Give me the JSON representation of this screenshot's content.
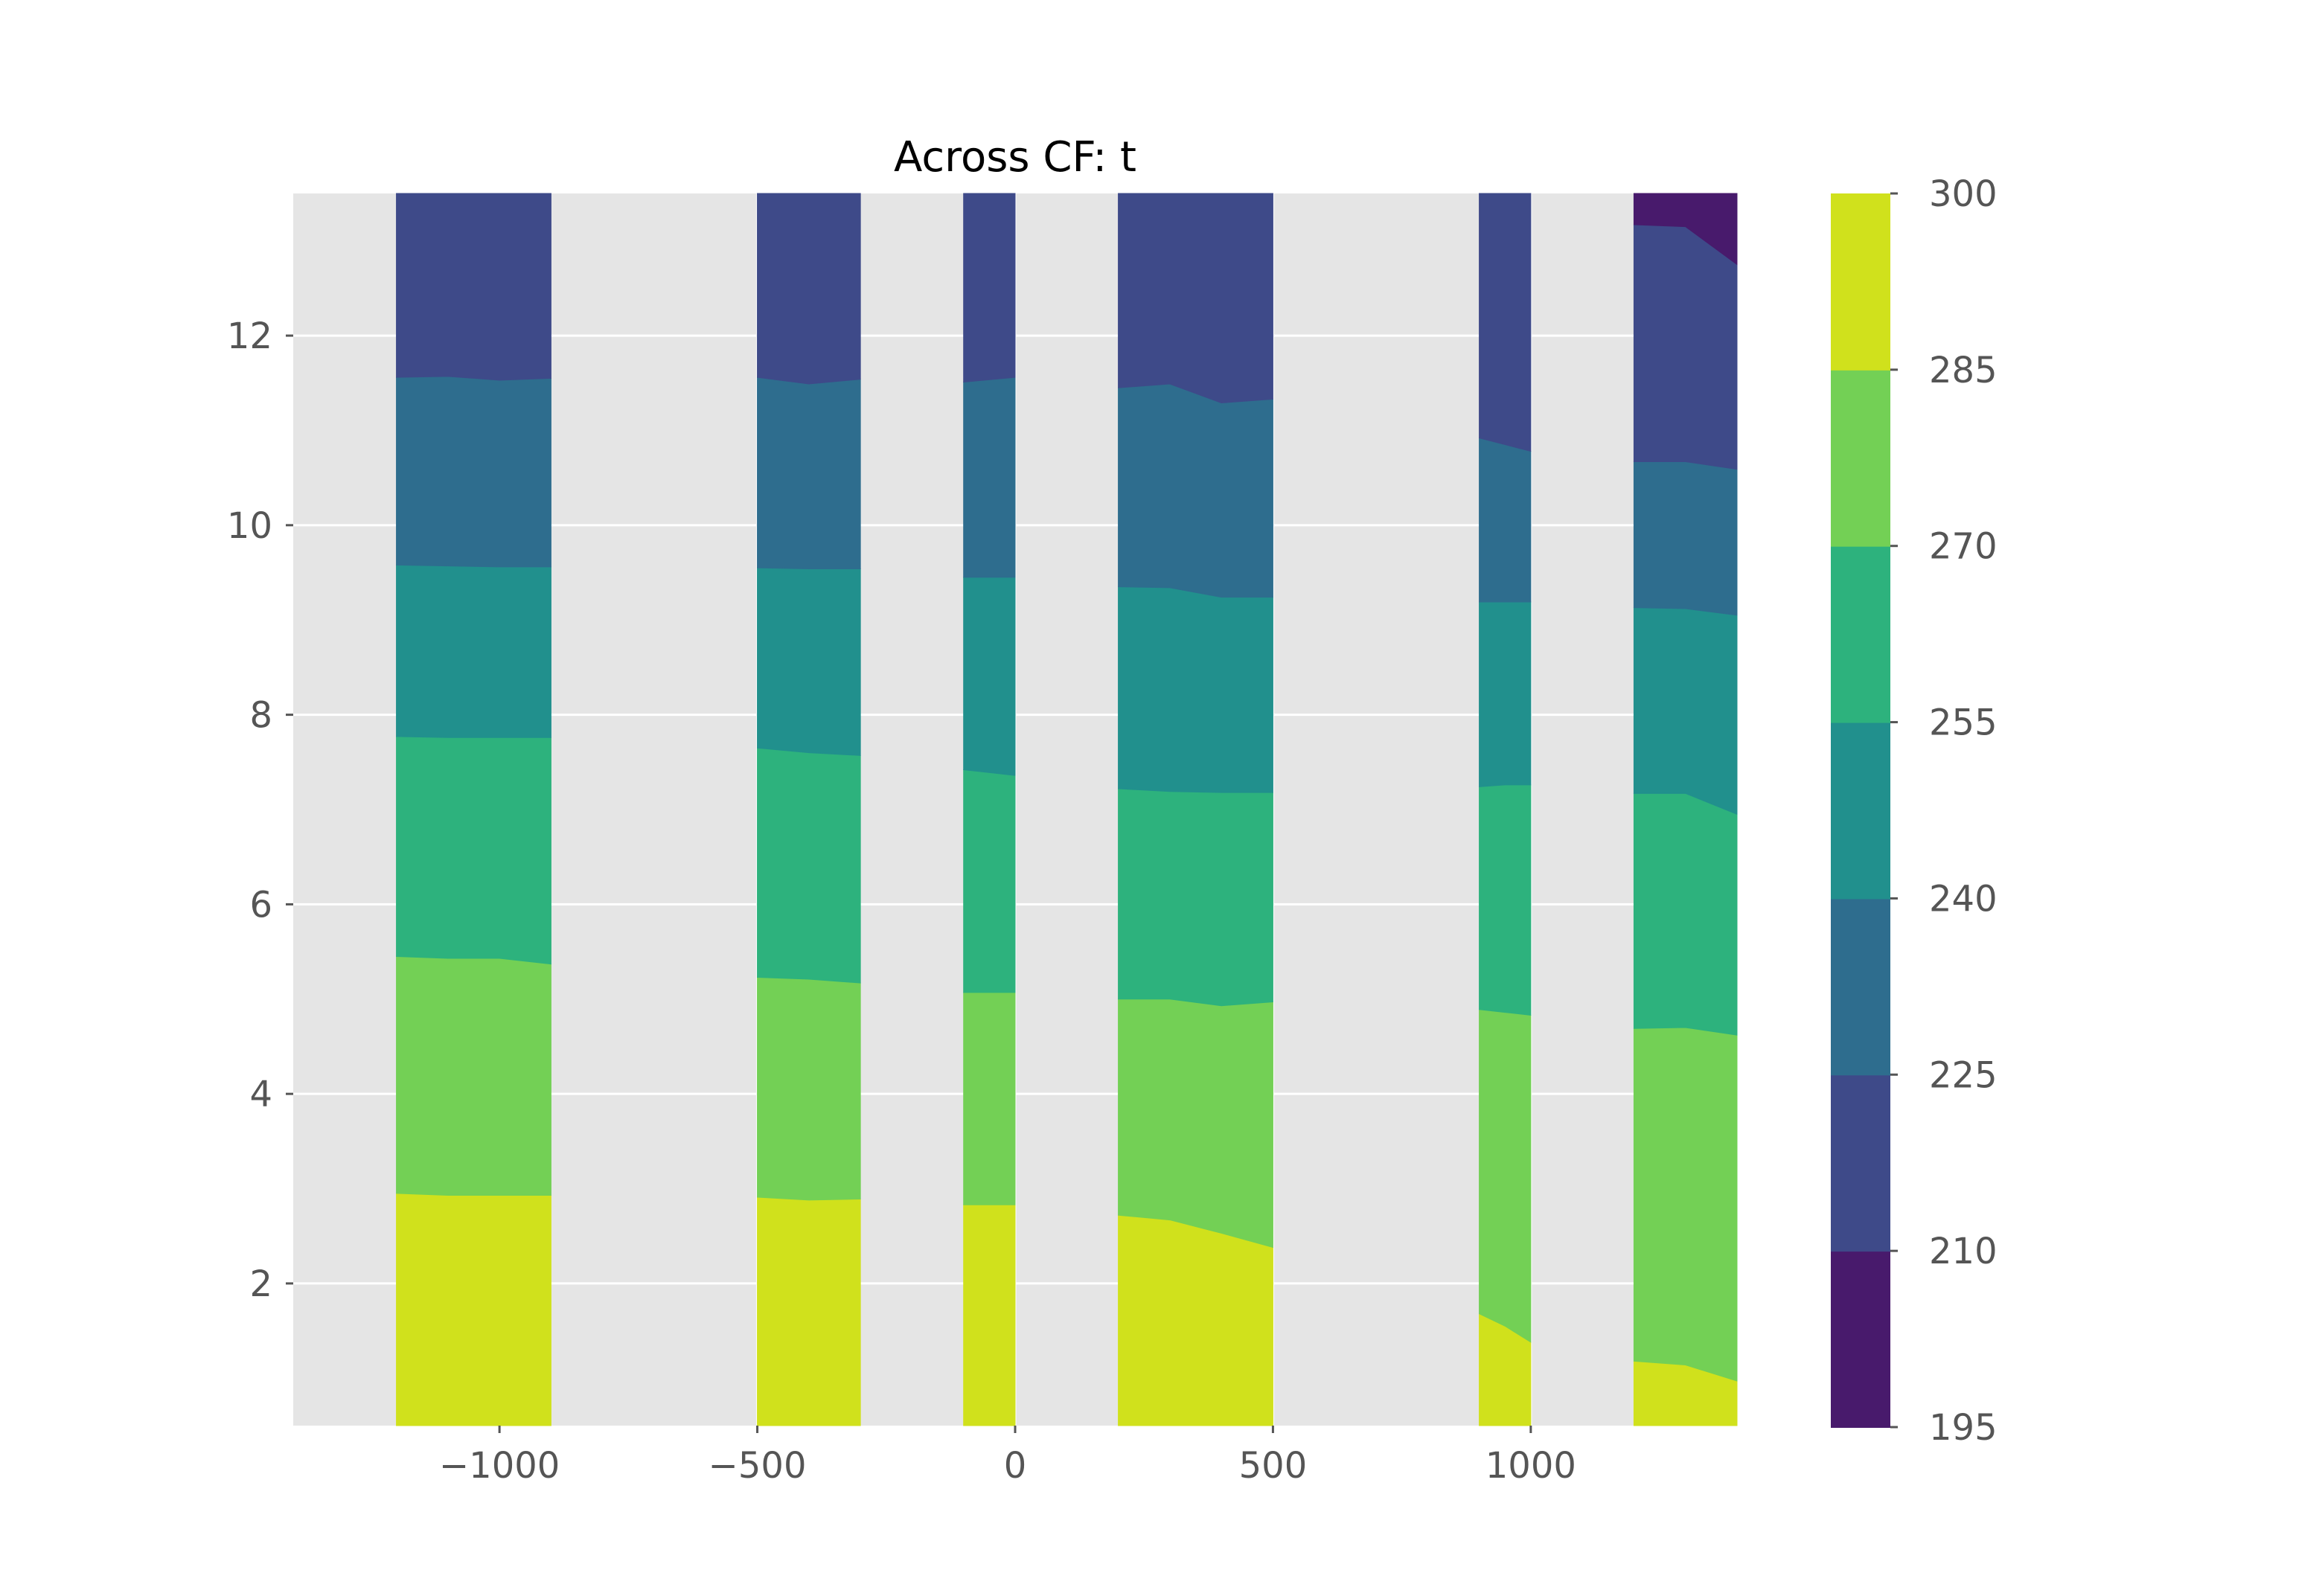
{
  "chart_data": {
    "type": "filled-contour",
    "title": "Across CF: t",
    "xlabel": "",
    "ylabel": "",
    "xlim": [
      -1400,
      1400
    ],
    "ylim": [
      0.5,
      13.5
    ],
    "grid": true,
    "background": "#e5e5e5",
    "x_ticks": [
      -1000,
      -500,
      0,
      500,
      1000
    ],
    "x_tick_labels": [
      "−1000",
      "−500",
      "0",
      "500",
      "1000"
    ],
    "y_ticks": [
      2,
      4,
      6,
      8,
      10,
      12
    ],
    "y_tick_labels": [
      "2",
      "4",
      "6",
      "8",
      "10",
      "12"
    ],
    "colorbar": {
      "levels": [
        195,
        210,
        225,
        240,
        255,
        270,
        285,
        300
      ],
      "tick_labels": [
        "195",
        "210",
        "225",
        "240",
        "255",
        "270",
        "285",
        "300"
      ],
      "colors": [
        "#481a6c",
        "#3e4a89",
        "#2e6d8e",
        "#21908d",
        "#2db27d",
        "#73d055",
        "#d0e11c"
      ]
    },
    "bands": [
      {
        "x": [
          -1200,
          -1100,
          -1000,
          -900
        ],
        "boundaries": [
          [
            2.95,
            2.93,
            2.93,
            2.93
          ],
          [
            5.45,
            5.43,
            5.43,
            5.37
          ],
          [
            7.77,
            7.76,
            7.76,
            7.76
          ],
          [
            9.58,
            9.57,
            9.56,
            9.56
          ],
          [
            11.56,
            11.57,
            11.53,
            11.55
          ]
        ]
      },
      {
        "x": [
          -500,
          -400,
          -300
        ],
        "boundaries": [
          [
            2.91,
            2.88,
            2.89
          ],
          [
            5.23,
            5.21,
            5.17
          ],
          [
            7.65,
            7.6,
            7.57
          ],
          [
            9.55,
            9.54,
            9.54
          ],
          [
            11.56,
            11.49,
            11.54
          ]
        ]
      },
      {
        "x": [
          -100,
          0
        ],
        "boundaries": [
          [
            2.83,
            2.83
          ],
          [
            5.07,
            5.07
          ],
          [
            7.42,
            7.36
          ],
          [
            9.45,
            9.45
          ],
          [
            11.51,
            11.56
          ]
        ]
      },
      {
        "x": [
          200,
          300,
          400,
          500
        ],
        "boundaries": [
          [
            2.72,
            2.67,
            2.53,
            2.38
          ],
          [
            5.0,
            5.0,
            4.93,
            4.97
          ],
          [
            7.22,
            7.19,
            7.18,
            7.18
          ],
          [
            9.35,
            9.34,
            9.24,
            9.24
          ],
          [
            11.45,
            11.49,
            11.29,
            11.33
          ]
        ]
      },
      {
        "x": [
          900,
          950,
          1000
        ],
        "boundaries": [
          [
            1.68,
            1.55,
            1.38
          ],
          [
            4.89,
            4.86,
            4.83
          ],
          [
            7.24,
            7.26,
            7.26
          ],
          [
            9.19,
            9.19,
            9.19
          ],
          [
            10.92,
            10.85,
            10.78
          ]
        ]
      },
      {
        "x": [
          1200,
          1300,
          1400
        ],
        "boundaries": [
          [
            1.18,
            1.14,
            0.97
          ],
          [
            4.69,
            4.7,
            4.62
          ],
          [
            7.17,
            7.17,
            6.95
          ],
          [
            9.13,
            9.12,
            9.05
          ],
          [
            10.67,
            10.67,
            10.59
          ],
          [
            13.17,
            13.15,
            12.75
          ]
        ]
      }
    ]
  }
}
